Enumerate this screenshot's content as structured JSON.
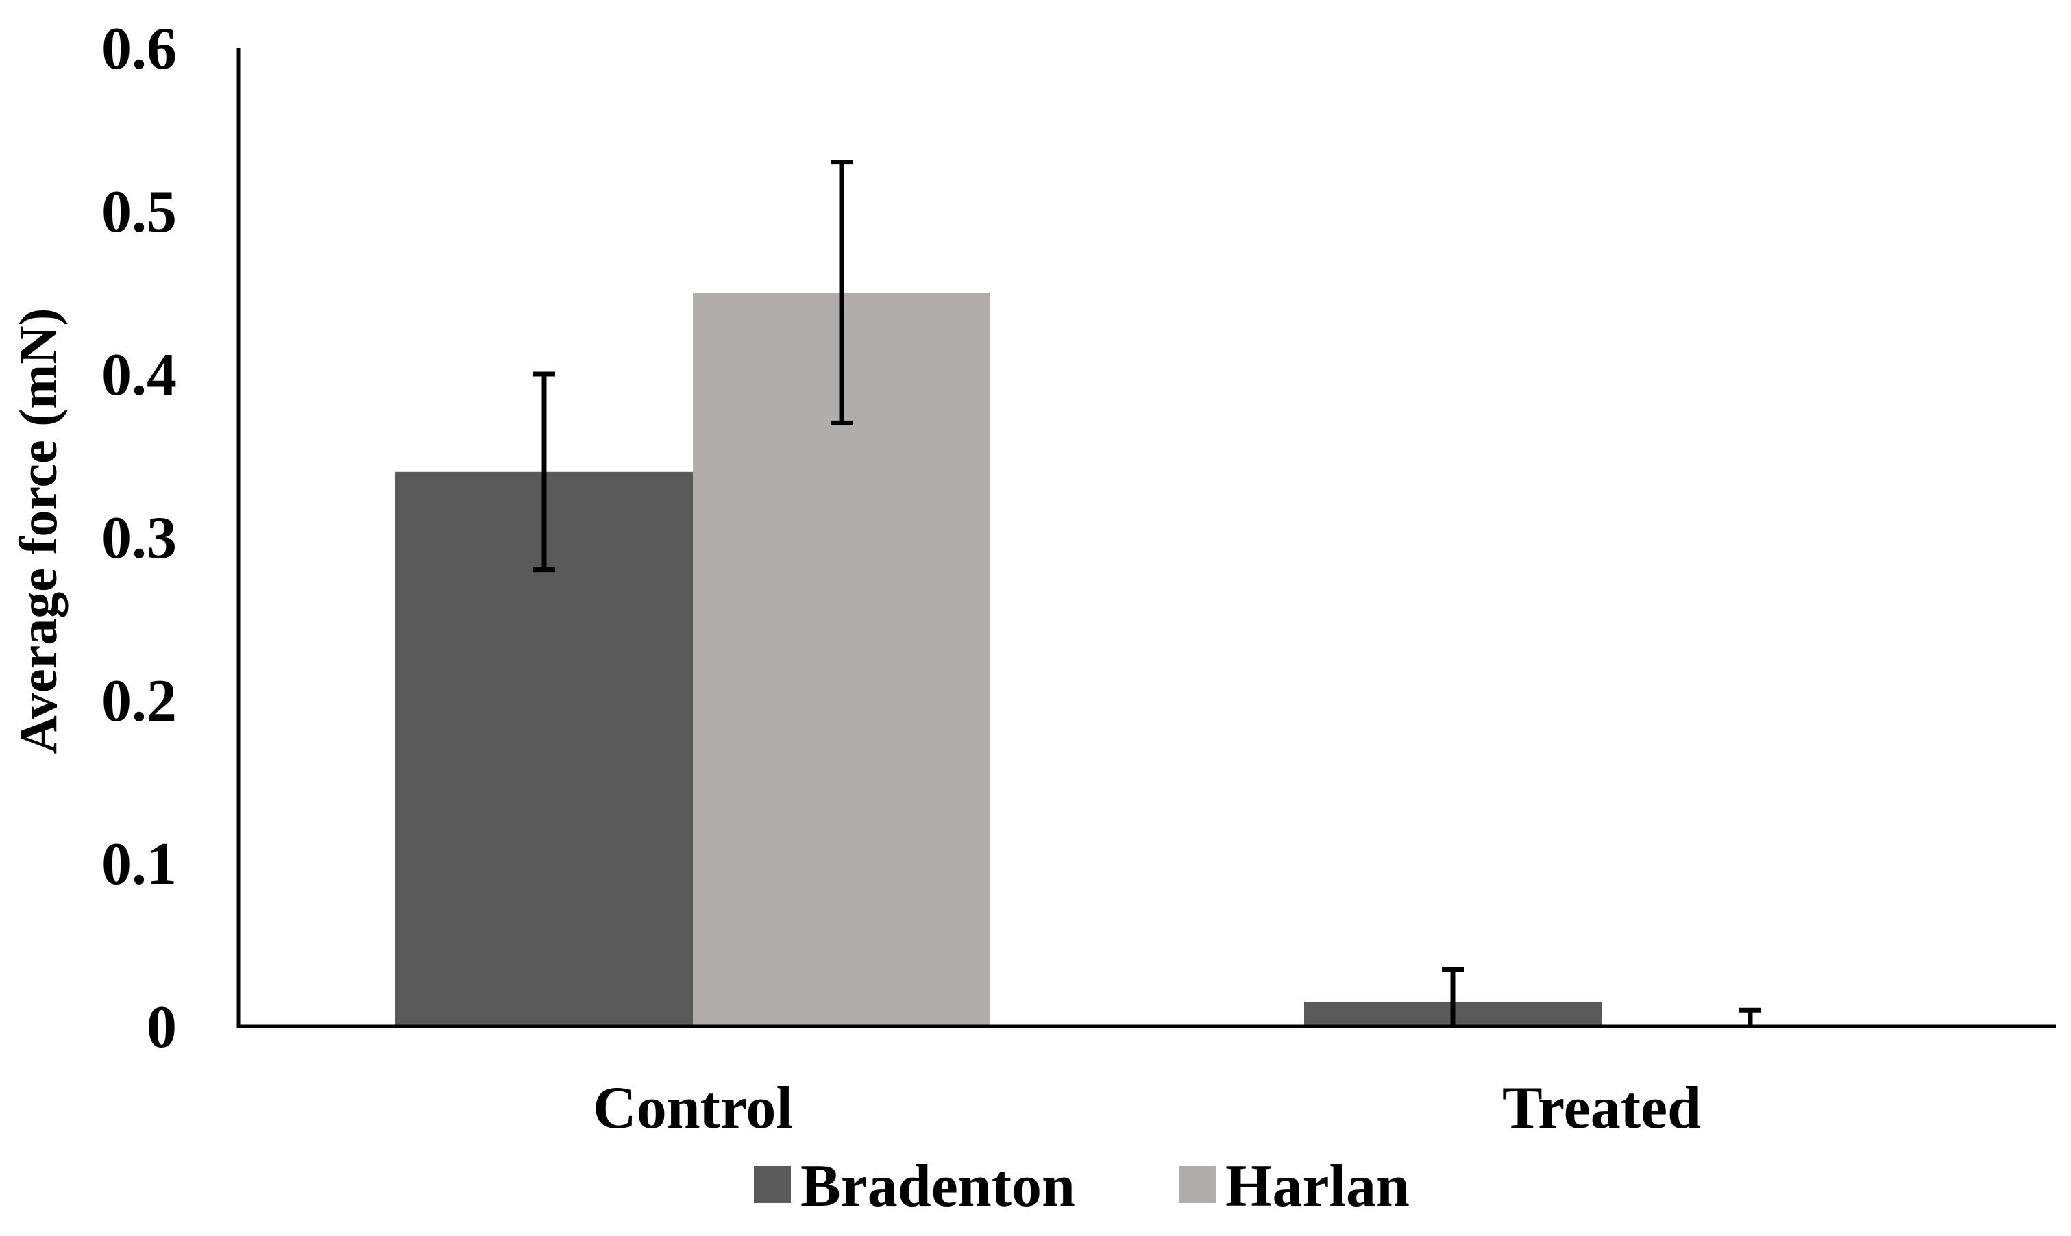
{
  "chart_data": {
    "type": "bar",
    "categories": [
      "Control",
      "Treated"
    ],
    "series": [
      {
        "name": "Bradenton",
        "color": "#5a5a5a",
        "values": [
          0.34,
          0.015
        ],
        "error": [
          0.06,
          0.02
        ]
      },
      {
        "name": "Harlan",
        "color": "#b0adac",
        "values": [
          0.45,
          0.0
        ],
        "error": [
          0.08,
          0.01
        ]
      }
    ],
    "ylabel": "Average force (mN)",
    "xlabel": "",
    "ylim": [
      0,
      0.6
    ],
    "yticks": [
      "0",
      "0.1",
      "0.2",
      "0.3",
      "0.4",
      "0.5",
      "0.6"
    ],
    "grid": false,
    "legend_position": "bottom"
  }
}
